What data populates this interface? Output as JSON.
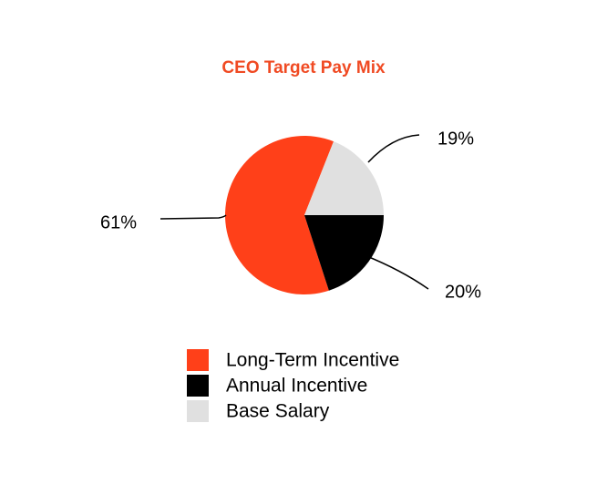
{
  "chart_data": {
    "type": "pie",
    "title": "CEO Target Pay Mix",
    "categories": [
      "Long-Term Incentive",
      "Annual Incentive",
      "Base Salary"
    ],
    "values": [
      61,
      20,
      19
    ],
    "value_labels": [
      "61%",
      "20%",
      "19%"
    ],
    "colors": [
      "#ff4019",
      "#000000",
      "#e0e0e0"
    ]
  }
}
